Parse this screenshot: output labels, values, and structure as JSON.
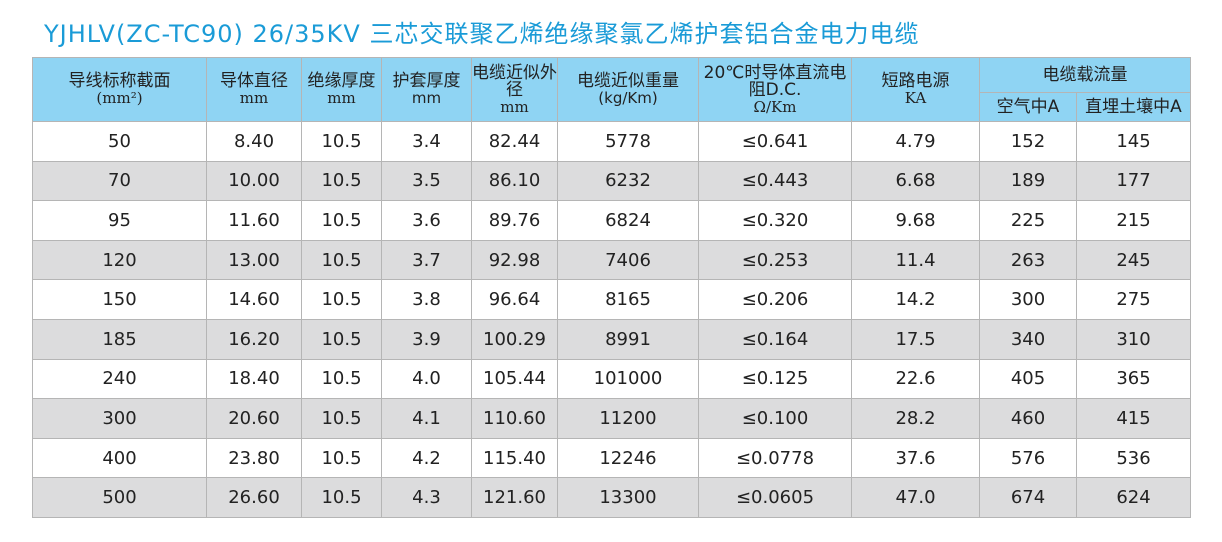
{
  "title": "YJHLV(ZC-TC90)   26/35KV 三芯交联聚乙烯绝缘聚氯乙烯护套铝合金电力电缆",
  "colors": {
    "title": "#1a9bd7",
    "header_bg": "#8fd4f3",
    "row_alt_bg": "#dcdcdd",
    "border": "#b5b5b5"
  },
  "table": {
    "headers": {
      "section": {
        "label": "导线标称截面",
        "unit": "(mm²)"
      },
      "conductor_diameter": {
        "label": "导体直径",
        "unit": "mm"
      },
      "insulation_thickness": {
        "label": "绝缘厚度",
        "unit": "mm"
      },
      "sheath_thickness": {
        "label": "护套厚度",
        "unit": "mm"
      },
      "outer_diameter": {
        "label": "电缆近似外径",
        "unit": "mm"
      },
      "weight": {
        "label": "电缆近似重量",
        "unit": "(kg/Km)"
      },
      "resistance": {
        "label": "20℃时导体直流电阻D.C.",
        "unit": "Ω/Km"
      },
      "short_circuit": {
        "label": "短路电源",
        "unit": "KA"
      },
      "current_capacity": {
        "label": "电缆载流量"
      },
      "in_air": {
        "label": "空气中A"
      },
      "in_soil": {
        "label": "直埋土壤中A"
      }
    },
    "rows": [
      [
        "50",
        "8.40",
        "10.5",
        "3.4",
        "82.44",
        "5778",
        "≤0.641",
        "4.79",
        "152",
        "145"
      ],
      [
        "70",
        "10.00",
        "10.5",
        "3.5",
        "86.10",
        "6232",
        "≤0.443",
        "6.68",
        "189",
        "177"
      ],
      [
        "95",
        "11.60",
        "10.5",
        "3.6",
        "89.76",
        "6824",
        "≤0.320",
        "9.68",
        "225",
        "215"
      ],
      [
        "120",
        "13.00",
        "10.5",
        "3.7",
        "92.98",
        "7406",
        "≤0.253",
        "11.4",
        "263",
        "245"
      ],
      [
        "150",
        "14.60",
        "10.5",
        "3.8",
        "96.64",
        "8165",
        "≤0.206",
        "14.2",
        "300",
        "275"
      ],
      [
        "185",
        "16.20",
        "10.5",
        "3.9",
        "100.29",
        "8991",
        "≤0.164",
        "17.5",
        "340",
        "310"
      ],
      [
        "240",
        "18.40",
        "10.5",
        "4.0",
        "105.44",
        "101000",
        "≤0.125",
        "22.6",
        "405",
        "365"
      ],
      [
        "300",
        "20.60",
        "10.5",
        "4.1",
        "110.60",
        "11200",
        "≤0.100",
        "28.2",
        "460",
        "415"
      ],
      [
        "400",
        "23.80",
        "10.5",
        "4.2",
        "115.40",
        "12246",
        "≤0.0778",
        "37.6",
        "576",
        "536"
      ],
      [
        "500",
        "26.60",
        "10.5",
        "4.3",
        "121.60",
        "13300",
        "≤0.0605",
        "47.0",
        "674",
        "624"
      ]
    ]
  }
}
